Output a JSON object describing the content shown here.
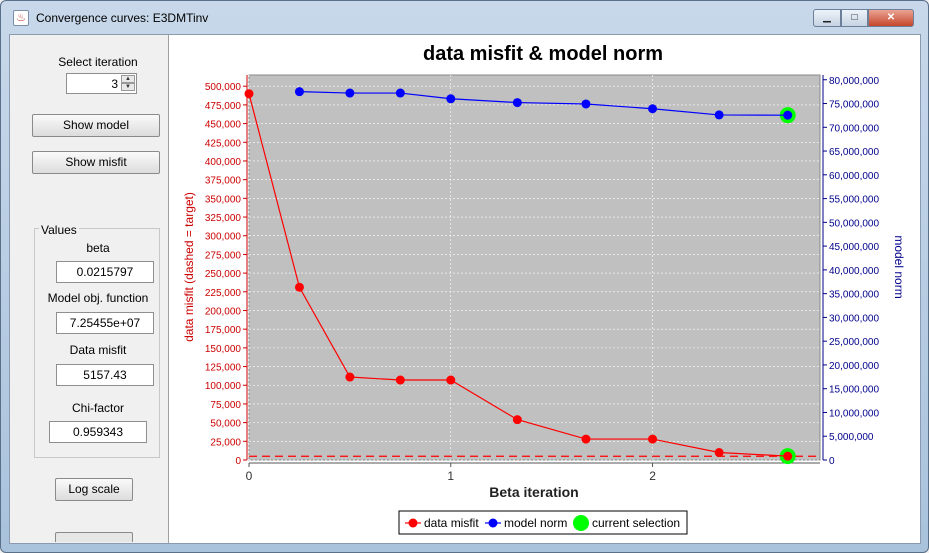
{
  "window": {
    "title": "Convergence curves: E3DMTinv",
    "min_glyph": "▁",
    "max_glyph": "□",
    "close_glyph": "✕",
    "icon_glyph": "♨"
  },
  "left": {
    "select_label": "Select iteration",
    "iteration": "3",
    "show_model": "Show model",
    "show_misfit": "Show misfit",
    "values_title": "Values",
    "beta_label": "beta",
    "beta_value": "0.0215797",
    "model_obj_label": "Model obj. function",
    "model_obj_value": "7.25455e+07",
    "data_misfit_label": "Data misfit",
    "data_misfit_value": "5157.43",
    "chi_label": "Chi-factor",
    "chi_value": "0.959343",
    "log_scale": "Log scale"
  },
  "chart_data": {
    "type": "line",
    "title": "data misfit & model norm",
    "xlabel": "Beta iteration",
    "ylabel_left": "data misfit (dashed = target)",
    "ylabel_right": "model norm",
    "xlim": [
      0,
      2.83
    ],
    "ylim_left": [
      0,
      515000
    ],
    "ylim_right": [
      0,
      81000000
    ],
    "x_ticks": [
      "0",
      "1",
      "2"
    ],
    "y_left_ticks": [
      "0",
      "25,000",
      "50,000",
      "75,000",
      "100,000",
      "125,000",
      "150,000",
      "175,000",
      "200,000",
      "225,000",
      "250,000",
      "275,000",
      "300,000",
      "325,000",
      "350,000",
      "375,000",
      "400,000",
      "425,000",
      "450,000",
      "475,000",
      "500,000"
    ],
    "y_right_ticks": [
      "0",
      "5,000,000",
      "10,000,000",
      "15,000,000",
      "20,000,000",
      "25,000,000",
      "30,000,000",
      "35,000,000",
      "40,000,000",
      "45,000,000",
      "50,000,000",
      "55,000,000",
      "60,000,000",
      "65,000,000",
      "70,000,000",
      "75,000,000",
      "80,000,000"
    ],
    "target": 5000,
    "series": [
      {
        "name": "data misfit",
        "color": "#ff0000",
        "axis": "left",
        "x": [
          0,
          0.25,
          0.5,
          0.75,
          1.0,
          1.33,
          1.67,
          2.0,
          2.33,
          2.67
        ],
        "values": [
          490000,
          231000,
          111000,
          107000,
          107000,
          54000,
          28000,
          28000,
          10000,
          5157
        ]
      },
      {
        "name": "model norm",
        "color": "#0000ff",
        "axis": "right",
        "x": [
          0.25,
          0.5,
          0.75,
          1.0,
          1.33,
          1.67,
          2.0,
          2.33,
          2.67
        ],
        "values": [
          77500000,
          77200000,
          77200000,
          76000000,
          75200000,
          74900000,
          73900000,
          72600000,
          72545500
        ]
      }
    ],
    "selection": {
      "name": "current selection",
      "x": 2.67,
      "color": "#00ff00"
    },
    "legend": [
      "data misfit",
      "model norm",
      "current selection"
    ],
    "legend_placement": "bottom",
    "grid": true
  }
}
